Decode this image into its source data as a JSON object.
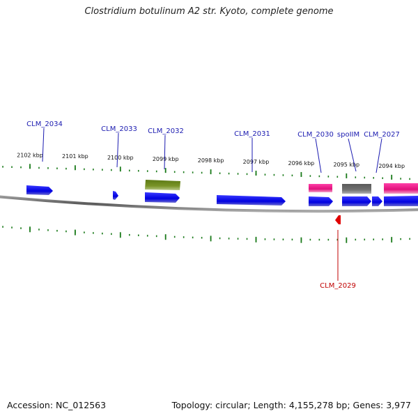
{
  "title": "Clostridium botulinum A2 str. Kyoto, complete genome",
  "footer": {
    "accession": "Accession: NC_012563",
    "summary": "Topology: circular; Length: 4,155,278 bp; Genes: 3,977"
  },
  "scale": {
    "unit": "kbp",
    "ticks": [
      {
        "kbp": 2102,
        "label": "2102 kbp"
      },
      {
        "kbp": 2101,
        "label": "2101 kbp"
      },
      {
        "kbp": 2100,
        "label": "2100 kbp"
      },
      {
        "kbp": 2099,
        "label": "2099 kbp"
      },
      {
        "kbp": 2098,
        "label": "2098 kbp"
      },
      {
        "kbp": 2097,
        "label": "2097 kbp"
      },
      {
        "kbp": 2096,
        "label": "2096 kbp"
      },
      {
        "kbp": 2095,
        "label": "2095 kbp"
      },
      {
        "kbp": 2094,
        "label": "2094 kbp"
      }
    ]
  },
  "colors": {
    "cds": "#1010e8",
    "trna": "#e8208c",
    "gray_feature": "#6a6a6a",
    "olive_feature": "#6f8a1e",
    "reverse_cds": "#e00000",
    "tick": "#1a7a1a",
    "backbone": "#7a7a7a",
    "label_forward": "#1a1ab0",
    "label_reverse": "#c00000"
  },
  "labels": [
    {
      "text": "CLM_2034",
      "strand": "forward"
    },
    {
      "text": "CLM_2033",
      "strand": "forward"
    },
    {
      "text": "CLM_2032",
      "strand": "forward"
    },
    {
      "text": "CLM_2031",
      "strand": "forward"
    },
    {
      "text": "CLM_2030",
      "strand": "forward"
    },
    {
      "text": "spoIIM",
      "strand": "forward"
    },
    {
      "text": "CLM_2027",
      "strand": "forward"
    },
    {
      "text": "CLM_2029",
      "strand": "reverse"
    }
  ]
}
